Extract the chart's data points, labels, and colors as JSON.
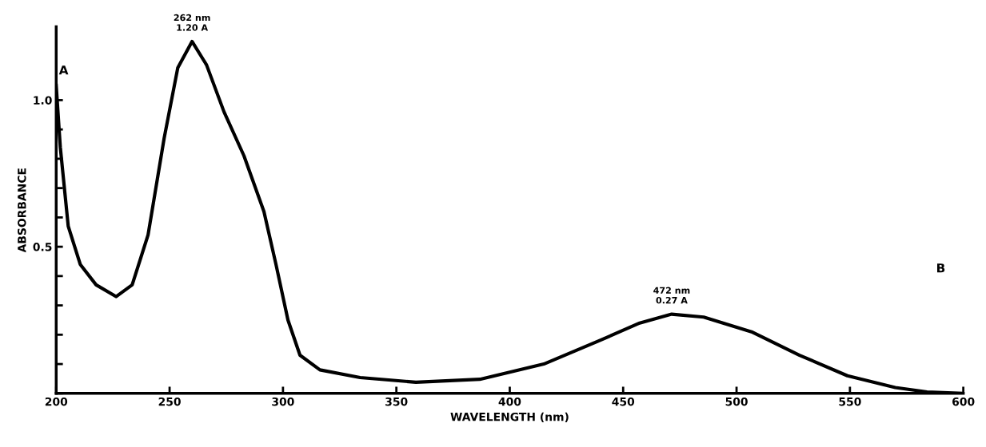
{
  "chart_data": {
    "type": "line",
    "xlabel": "WAVELENGTH (nm)",
    "ylabel": "ABSORBANCE",
    "series": [
      {
        "color": "#000000",
        "x": [
          200,
          201.8,
          205.3,
          210.6,
          217.6,
          226.4,
          233.5,
          240.5,
          247.6,
          253.6,
          259.9,
          266.3,
          274,
          282.8,
          291.6,
          296.9,
          302.2,
          307.5,
          316.3,
          334,
          358.6,
          386.8,
          415,
          439.6,
          457.3,
          471.4,
          485.5,
          506.6,
          527.8,
          548.9,
          570,
          584,
          600
        ],
        "values": [
          1.05,
          0.84,
          0.57,
          0.44,
          0.37,
          0.33,
          0.37,
          0.54,
          0.87,
          1.11,
          1.2,
          1.12,
          0.96,
          0.81,
          0.62,
          0.44,
          0.25,
          0.13,
          0.08,
          0.054,
          0.038,
          0.048,
          0.1,
          0.18,
          0.24,
          0.27,
          0.26,
          0.21,
          0.13,
          0.06,
          0.02,
          0.005,
          0
        ]
      }
    ],
    "xlim": [
      200,
      600
    ],
    "xticks": [
      200,
      250,
      300,
      350,
      400,
      450,
      500,
      550,
      600
    ],
    "ylim": [
      0,
      1.25
    ],
    "yticks": [
      {
        "value": 0,
        "label": null
      },
      {
        "value": 0.1,
        "label": null
      },
      {
        "value": 0.2,
        "label": null
      },
      {
        "value": 0.3,
        "label": null
      },
      {
        "value": 0.4,
        "label": null
      },
      {
        "value": 0.5,
        "label": "0.5"
      },
      {
        "value": 0.6,
        "label": null
      },
      {
        "value": 0.7,
        "label": null
      },
      {
        "value": 0.8,
        "label": null
      },
      {
        "value": 0.9,
        "label": null
      },
      {
        "value": 1.0,
        "label": "1.0"
      }
    ],
    "grid": false,
    "legend": false,
    "marker": "none",
    "line_style": "solid",
    "annotations": [
      {
        "text": "262 nm\n1.20 A",
        "x": 259.9,
        "y": 1.2
      },
      {
        "text": "472 nm\n0.27 A",
        "x": 471.4,
        "y": 0.27
      },
      "A",
      "B"
    ]
  }
}
